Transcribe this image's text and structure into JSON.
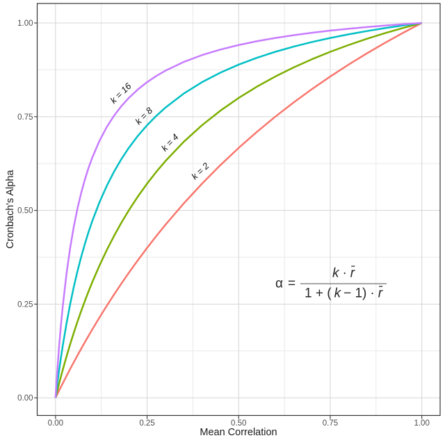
{
  "chart_data": {
    "type": "line",
    "title": "",
    "xlabel": "Mean Correlation",
    "ylabel": "Cronbach's Alpha",
    "xlim": [
      -0.05,
      1.05
    ],
    "ylim": [
      -0.047,
      1.052
    ],
    "grid": true,
    "legend_position": "none",
    "x_ticks": {
      "values": [
        0,
        0.25,
        0.5,
        0.75,
        1
      ],
      "labels": [
        "0.00",
        "0.25",
        "0.50",
        "0.75",
        "1.00"
      ]
    },
    "y_ticks": {
      "values": [
        0,
        0.25,
        0.5,
        0.75,
        1
      ],
      "labels": [
        "0.00",
        "0.25",
        "0.50",
        "0.75",
        "1.00"
      ]
    },
    "minor_ticks": [
      0.125,
      0.375,
      0.625,
      0.875
    ],
    "colors": {
      "grid_major": "#d4d4d4",
      "grid_minor": "#eaeaea",
      "panel_border": "#343434",
      "tick_mark": "#333333",
      "tick_text": "#4d4d4d",
      "axis_title_text": "#1a1a1a",
      "background": "#ffffff"
    },
    "r_samples": [
      0,
      0.0025,
      0.005,
      0.01,
      0.015,
      0.02,
      0.03,
      0.04,
      0.05,
      0.06,
      0.07,
      0.08,
      0.09,
      0.1,
      0.12,
      0.14,
      0.16,
      0.18,
      0.2,
      0.225,
      0.25,
      0.275,
      0.3,
      0.35,
      0.4,
      0.45,
      0.5,
      0.55,
      0.6,
      0.65,
      0.7,
      0.75,
      0.8,
      0.85,
      0.9,
      0.95,
      1
    ],
    "series": [
      {
        "name": "k = 2",
        "k": 2,
        "color": "#F8766D",
        "label": {
          "text": "k = 2",
          "r": 0.395,
          "alpha": 0.605,
          "angle": -43
        },
        "values": [
          0,
          0.00499,
          0.00995,
          0.0198,
          0.02956,
          0.03922,
          0.05825,
          0.07692,
          0.09524,
          0.11321,
          0.13084,
          0.14815,
          0.16514,
          0.18182,
          0.21429,
          0.24561,
          0.27586,
          0.30508,
          0.33333,
          0.36735,
          0.4,
          0.43137,
          0.46154,
          0.51852,
          0.57143,
          0.62069,
          0.66667,
          0.70968,
          0.75,
          0.78788,
          0.82353,
          0.85714,
          0.88889,
          0.91892,
          0.94737,
          0.97436,
          1
        ]
      },
      {
        "name": "k = 4",
        "k": 4,
        "color": "#7CAE00",
        "label": {
          "text": "k = 4",
          "r": 0.312,
          "alpha": 0.681,
          "angle": -46
        },
        "values": [
          0,
          0.00993,
          0.0197,
          0.03883,
          0.05742,
          0.07547,
          0.11009,
          0.14286,
          0.17391,
          0.20339,
          0.2314,
          0.25806,
          0.28346,
          0.30769,
          0.35294,
          0.39437,
          0.43243,
          0.46753,
          0.5,
          0.53731,
          0.57143,
          0.60274,
          0.63158,
          0.68293,
          0.72727,
          0.76596,
          0.8,
          0.83019,
          0.85714,
          0.88136,
          0.90323,
          0.92308,
          0.94118,
          0.95775,
          0.97297,
          0.98701,
          1
        ]
      },
      {
        "name": "k = 8",
        "k": 8,
        "color": "#00BFC4",
        "label": {
          "text": "k = 8",
          "r": 0.241,
          "alpha": 0.752,
          "angle": -45
        },
        "values": [
          0,
          0.01966,
          0.03865,
          0.07477,
          0.1086,
          0.14035,
          0.19835,
          0.25,
          0.2963,
          0.33803,
          0.37584,
          0.41026,
          0.44172,
          0.47059,
          0.52174,
          0.56566,
          0.60377,
          0.63717,
          0.66667,
          0.69903,
          0.72727,
          0.75214,
          0.77419,
          0.81159,
          0.84211,
          0.86747,
          0.88889,
          0.90722,
          0.92308,
          0.93694,
          0.94915,
          0.96,
          0.9697,
          0.97842,
          0.9863,
          0.99346,
          1
        ]
      },
      {
        "name": "k = 16",
        "k": 16,
        "color": "#C77CFF",
        "label": {
          "text": "k = 16",
          "r": 0.178,
          "alpha": 0.813,
          "angle": -44
        },
        "values": [
          0,
          0.03855,
          0.07442,
          0.13913,
          0.19592,
          0.24615,
          0.33103,
          0.4,
          0.45714,
          0.50526,
          0.54634,
          0.58182,
          0.61277,
          0.64,
          0.68571,
          0.72258,
          0.75294,
          0.77838,
          0.8,
          0.82286,
          0.84211,
          0.85854,
          0.87273,
          0.896,
          0.91429,
          0.92903,
          0.94118,
          0.95135,
          0.96,
          0.96744,
          0.97391,
          0.97959,
          0.98462,
          0.98909,
          0.9931,
          0.99672,
          1
        ]
      }
    ],
    "formula": {
      "lhs": "α",
      "eq": "=",
      "num": {
        "k": "k",
        "times": "·",
        "r": "r̄"
      },
      "den": {
        "open": "1 + (",
        "k": "k",
        "close": "− 1)",
        "times": "·",
        "r": "r̄"
      },
      "pos": {
        "r": 0.752,
        "alpha": 0.304
      }
    }
  }
}
